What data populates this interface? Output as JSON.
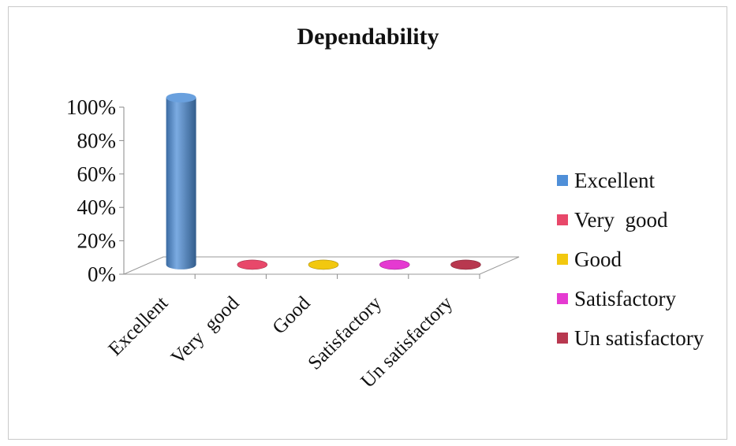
{
  "chart_data": {
    "type": "bar",
    "title": "Dependability",
    "categories": [
      "Excellent",
      "Very  good",
      "Good",
      "Satisfactory",
      "Un satisfactory"
    ],
    "series": [
      {
        "values": [
          100,
          0,
          0,
          0,
          0
        ],
        "colors": [
          "#4f8fd8",
          "#e8486a",
          "#f2c80f",
          "#e53ad1",
          "#b8384f"
        ]
      }
    ],
    "ylim": [
      0,
      100
    ],
    "yticks": [
      "0%",
      "20%",
      "40%",
      "60%",
      "80%",
      "100%"
    ],
    "yunit": "%",
    "legend": {
      "position": "right",
      "entries": [
        {
          "label": "Excellent",
          "color": "#4f8fd8"
        },
        {
          "label": "Very  good",
          "color": "#e8486a"
        },
        {
          "label": "Good",
          "color": "#f2c80f"
        },
        {
          "label": "Satisfactory",
          "color": "#e53ad1"
        },
        {
          "label": "Un satisfactory",
          "color": "#b8384f"
        }
      ]
    },
    "style": "3d-cylinder"
  }
}
